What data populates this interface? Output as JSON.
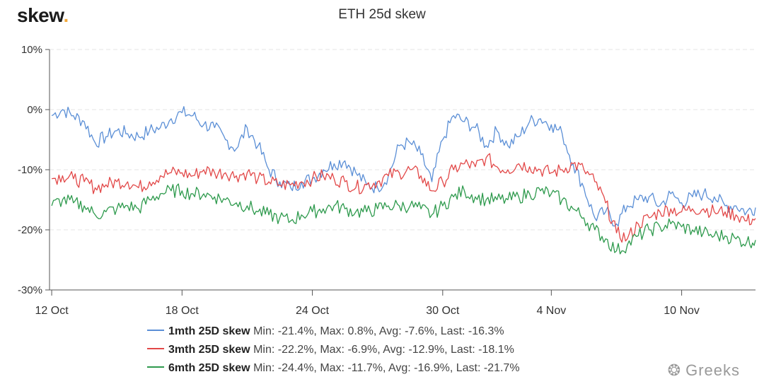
{
  "brand": {
    "name": "skew",
    "dot": "."
  },
  "watermark": {
    "text": "Greeks",
    "icon": "wechat-icon"
  },
  "chart_data": {
    "type": "line",
    "title": "ETH 25d skew",
    "ylim": [
      -30,
      10
    ],
    "y_ticks": [
      "10%",
      "0%",
      "-10%",
      "-20%",
      "-30%"
    ],
    "x_ticks": [
      "12 Oct",
      "18 Oct",
      "24 Oct",
      "30 Oct",
      "4 Nov",
      "10 Nov"
    ],
    "x_range_days": [
      11.9,
      44.4
    ],
    "grid": true,
    "legend_position": "bottom",
    "x": [
      12,
      12.5,
      13,
      13.5,
      14,
      14.5,
      15,
      15.5,
      16,
      16.5,
      17,
      17.5,
      18,
      18.5,
      19,
      19.5,
      20,
      20.5,
      21,
      21.5,
      22,
      22.5,
      23,
      23.5,
      24,
      24.5,
      25,
      25.5,
      26,
      26.5,
      27,
      27.5,
      28,
      28.5,
      29,
      29.5,
      30,
      30.5,
      31,
      31.5,
      32,
      32.5,
      33,
      33.5,
      34,
      34.5,
      35,
      35.5,
      36,
      36.5,
      37,
      37.5,
      38,
      38.5,
      39,
      39.5,
      40,
      40.5,
      41,
      41.5,
      42,
      42.5,
      43,
      43.5,
      44,
      44.4
    ],
    "series": [
      {
        "name": "1mth 25D skew",
        "color": "#5b8fd6",
        "stats": "Min: -21.4%, Max: 0.8%, Avg: -7.6%, Last: -16.3%",
        "values": [
          -1,
          0,
          -1,
          -2,
          -5.5,
          -4.5,
          -3.5,
          -4,
          -4.5,
          -3.5,
          -3,
          -1.5,
          -0.5,
          -1,
          -2.5,
          -3,
          -5,
          -6.5,
          -3,
          -6,
          -10,
          -12,
          -13,
          -12,
          -11.5,
          -10,
          -9,
          -8.5,
          -10.5,
          -12.5,
          -13,
          -11,
          -6,
          -5.5,
          -7.5,
          -12,
          -5,
          -1,
          -2,
          -3,
          -6,
          -3.5,
          -6,
          -4.5,
          -2,
          -1.5,
          -2.5,
          -4,
          -9,
          -13,
          -18,
          -17,
          -19,
          -16,
          -15,
          -14.5,
          -16,
          -14,
          -15.5,
          -14.5,
          -14,
          -14.5,
          -16,
          -16,
          -17,
          -16.3
        ]
      },
      {
        "name": "3mth 25D skew",
        "color": "#e24848",
        "stats": "Min: -22.2%, Max: -6.9%, Avg: -12.9%, Last: -18.1%",
        "values": [
          -11.5,
          -11,
          -11.5,
          -12,
          -13,
          -12.5,
          -12,
          -12,
          -13,
          -12,
          -11,
          -10.5,
          -10.5,
          -11,
          -10,
          -10.5,
          -10.5,
          -11,
          -10.5,
          -11.5,
          -12,
          -12.5,
          -12.5,
          -12,
          -11.5,
          -11,
          -11.5,
          -12,
          -13,
          -12.5,
          -12,
          -11,
          -10.5,
          -10,
          -11,
          -13.5,
          -12,
          -10,
          -9,
          -9.5,
          -8,
          -9.5,
          -10,
          -9,
          -9.5,
          -10,
          -10.5,
          -10,
          -9,
          -10,
          -12,
          -15.5,
          -20.5,
          -21.5,
          -19,
          -18,
          -17,
          -16.5,
          -17,
          -16.5,
          -16.5,
          -17,
          -17,
          -17.5,
          -18.5,
          -18.1
        ]
      },
      {
        "name": "6mth 25D skew",
        "color": "#2e9a4d",
        "stats": "Min: -24.4%, Max: -11.7%, Avg: -16.9%, Last: -21.7%",
        "values": [
          -16,
          -15,
          -15.5,
          -16,
          -17.5,
          -17,
          -16.5,
          -16,
          -16.5,
          -15,
          -14,
          -13.5,
          -13.5,
          -14,
          -14,
          -14.5,
          -15,
          -15.5,
          -16,
          -17,
          -17.5,
          -18,
          -18.5,
          -17.5,
          -17,
          -16.5,
          -16,
          -16.5,
          -17,
          -17,
          -16.5,
          -16,
          -16,
          -16,
          -16.5,
          -17.5,
          -16,
          -14.5,
          -13.5,
          -14.5,
          -15,
          -15,
          -15,
          -14.5,
          -14,
          -13.5,
          -14,
          -15,
          -16.5,
          -18,
          -20,
          -21.5,
          -23.5,
          -22.5,
          -21,
          -20,
          -19.5,
          -19,
          -19.5,
          -20,
          -20.5,
          -21,
          -21,
          -21.5,
          -22,
          -21.7
        ]
      }
    ]
  }
}
